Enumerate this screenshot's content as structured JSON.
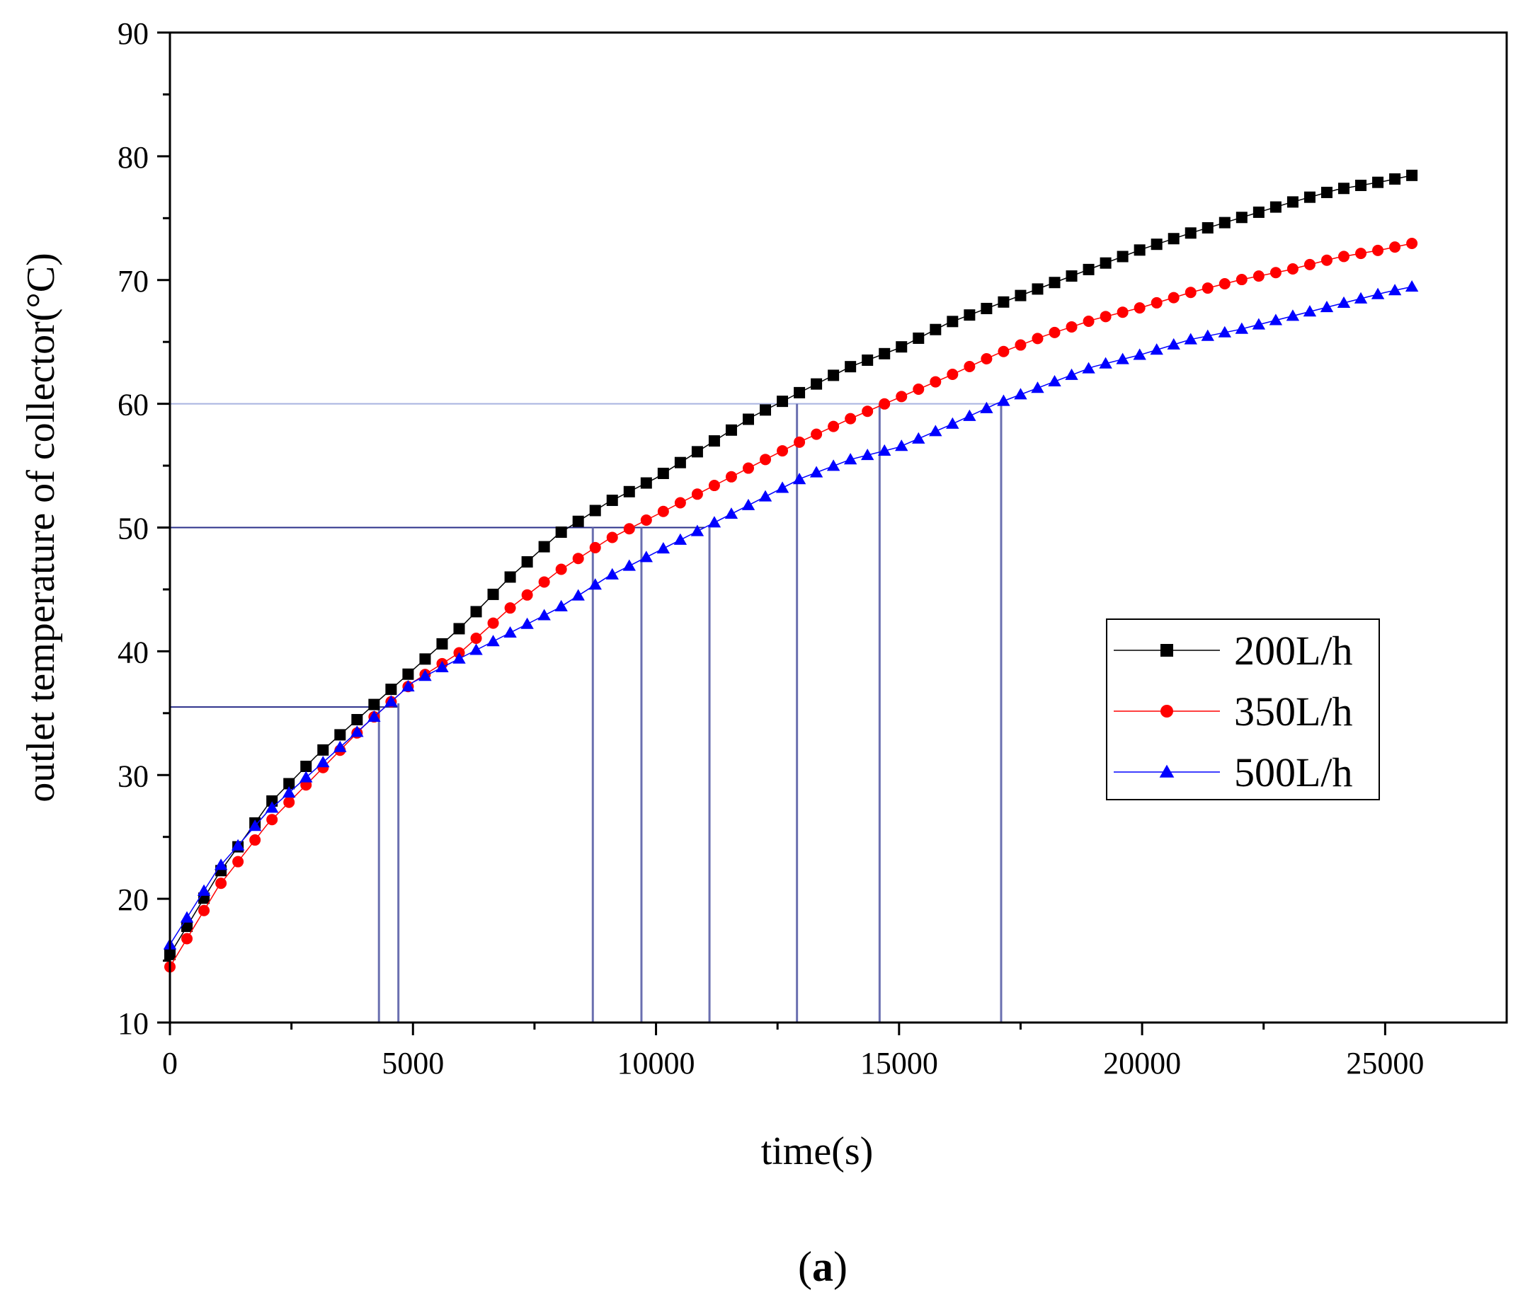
{
  "chart_data": {
    "type": "line",
    "title": "",
    "xlabel": "time(s)",
    "ylabel": "outlet temperature of collector(°C)",
    "xlim": [
      0,
      27500
    ],
    "ylim": [
      10,
      90
    ],
    "xticks": [
      0,
      5000,
      10000,
      15000,
      20000,
      25000
    ],
    "yticks": [
      10,
      20,
      30,
      40,
      50,
      60,
      70,
      80,
      90
    ],
    "caption_prefix": "(",
    "caption_letter": "a",
    "caption_suffix": ")",
    "legend_position": "right-middle",
    "series": [
      {
        "name": "200L/h",
        "color": "#000000",
        "marker": "square",
        "x": [
          0,
          1000,
          2000,
          3000,
          4000,
          5000,
          6000,
          7000,
          8000,
          9000,
          10000,
          11000,
          12000,
          13000,
          14000,
          15000,
          16000,
          17000,
          18000,
          19000,
          20000,
          21000,
          22000,
          23000,
          24000,
          25000,
          25600
        ],
        "values": [
          15.5,
          22,
          27.5,
          31.5,
          35,
          38.5,
          42,
          46,
          49.5,
          52,
          54,
          56.5,
          59,
          61,
          63,
          64.5,
          66.5,
          68,
          69.5,
          71,
          72.5,
          73.8,
          75,
          76.2,
          77.3,
          78,
          78.5
        ]
      },
      {
        "name": "350L/h",
        "color": "#ff0000",
        "marker": "circle",
        "x": [
          0,
          1000,
          2000,
          3000,
          4000,
          5000,
          6000,
          7000,
          8000,
          9000,
          10000,
          11000,
          12000,
          13000,
          14000,
          15000,
          16000,
          17000,
          18000,
          19000,
          20000,
          21000,
          22000,
          23000,
          24000,
          25000,
          25600
        ],
        "values": [
          14.5,
          21,
          26,
          30,
          34,
          37.5,
          40,
          43.5,
          46.5,
          49,
          51,
          53,
          55,
          57,
          58.8,
          60.5,
          62.2,
          64,
          65.5,
          66.8,
          67.8,
          69,
          70,
          70.8,
          71.8,
          72.5,
          73
        ]
      },
      {
        "name": "500L/h",
        "color": "#0000ff",
        "marker": "triangle",
        "x": [
          0,
          1000,
          2000,
          3000,
          4000,
          5000,
          6000,
          7000,
          8000,
          9000,
          10000,
          11000,
          12000,
          13000,
          14000,
          15000,
          16000,
          17000,
          18000,
          19000,
          20000,
          21000,
          22000,
          23000,
          24000,
          25000,
          25600
        ],
        "values": [
          16.3,
          22.5,
          27,
          30.5,
          34,
          37.5,
          39.5,
          41.5,
          43.5,
          46,
          48,
          50,
          52,
          54,
          55.5,
          56.5,
          58.2,
          60,
          61.5,
          63,
          64,
          65.2,
          66,
          67,
          68,
          69,
          69.5
        ]
      }
    ],
    "reference_lines": {
      "horizontal": [
        {
          "y": 35.5,
          "x_end": 4700
        },
        {
          "y": 50,
          "x_end": 11000
        },
        {
          "y": 60,
          "x_end": 17200
        }
      ],
      "vertical": [
        {
          "x": 4300,
          "y_end": 35.5
        },
        {
          "x": 4700,
          "y_end": 35.8
        },
        {
          "x": 8700,
          "y_end": 50
        },
        {
          "x": 9700,
          "y_end": 50
        },
        {
          "x": 11100,
          "y_end": 50
        },
        {
          "x": 12900,
          "y_end": 60
        },
        {
          "x": 14600,
          "y_end": 60
        },
        {
          "x": 17100,
          "y_end": 60
        }
      ]
    }
  }
}
